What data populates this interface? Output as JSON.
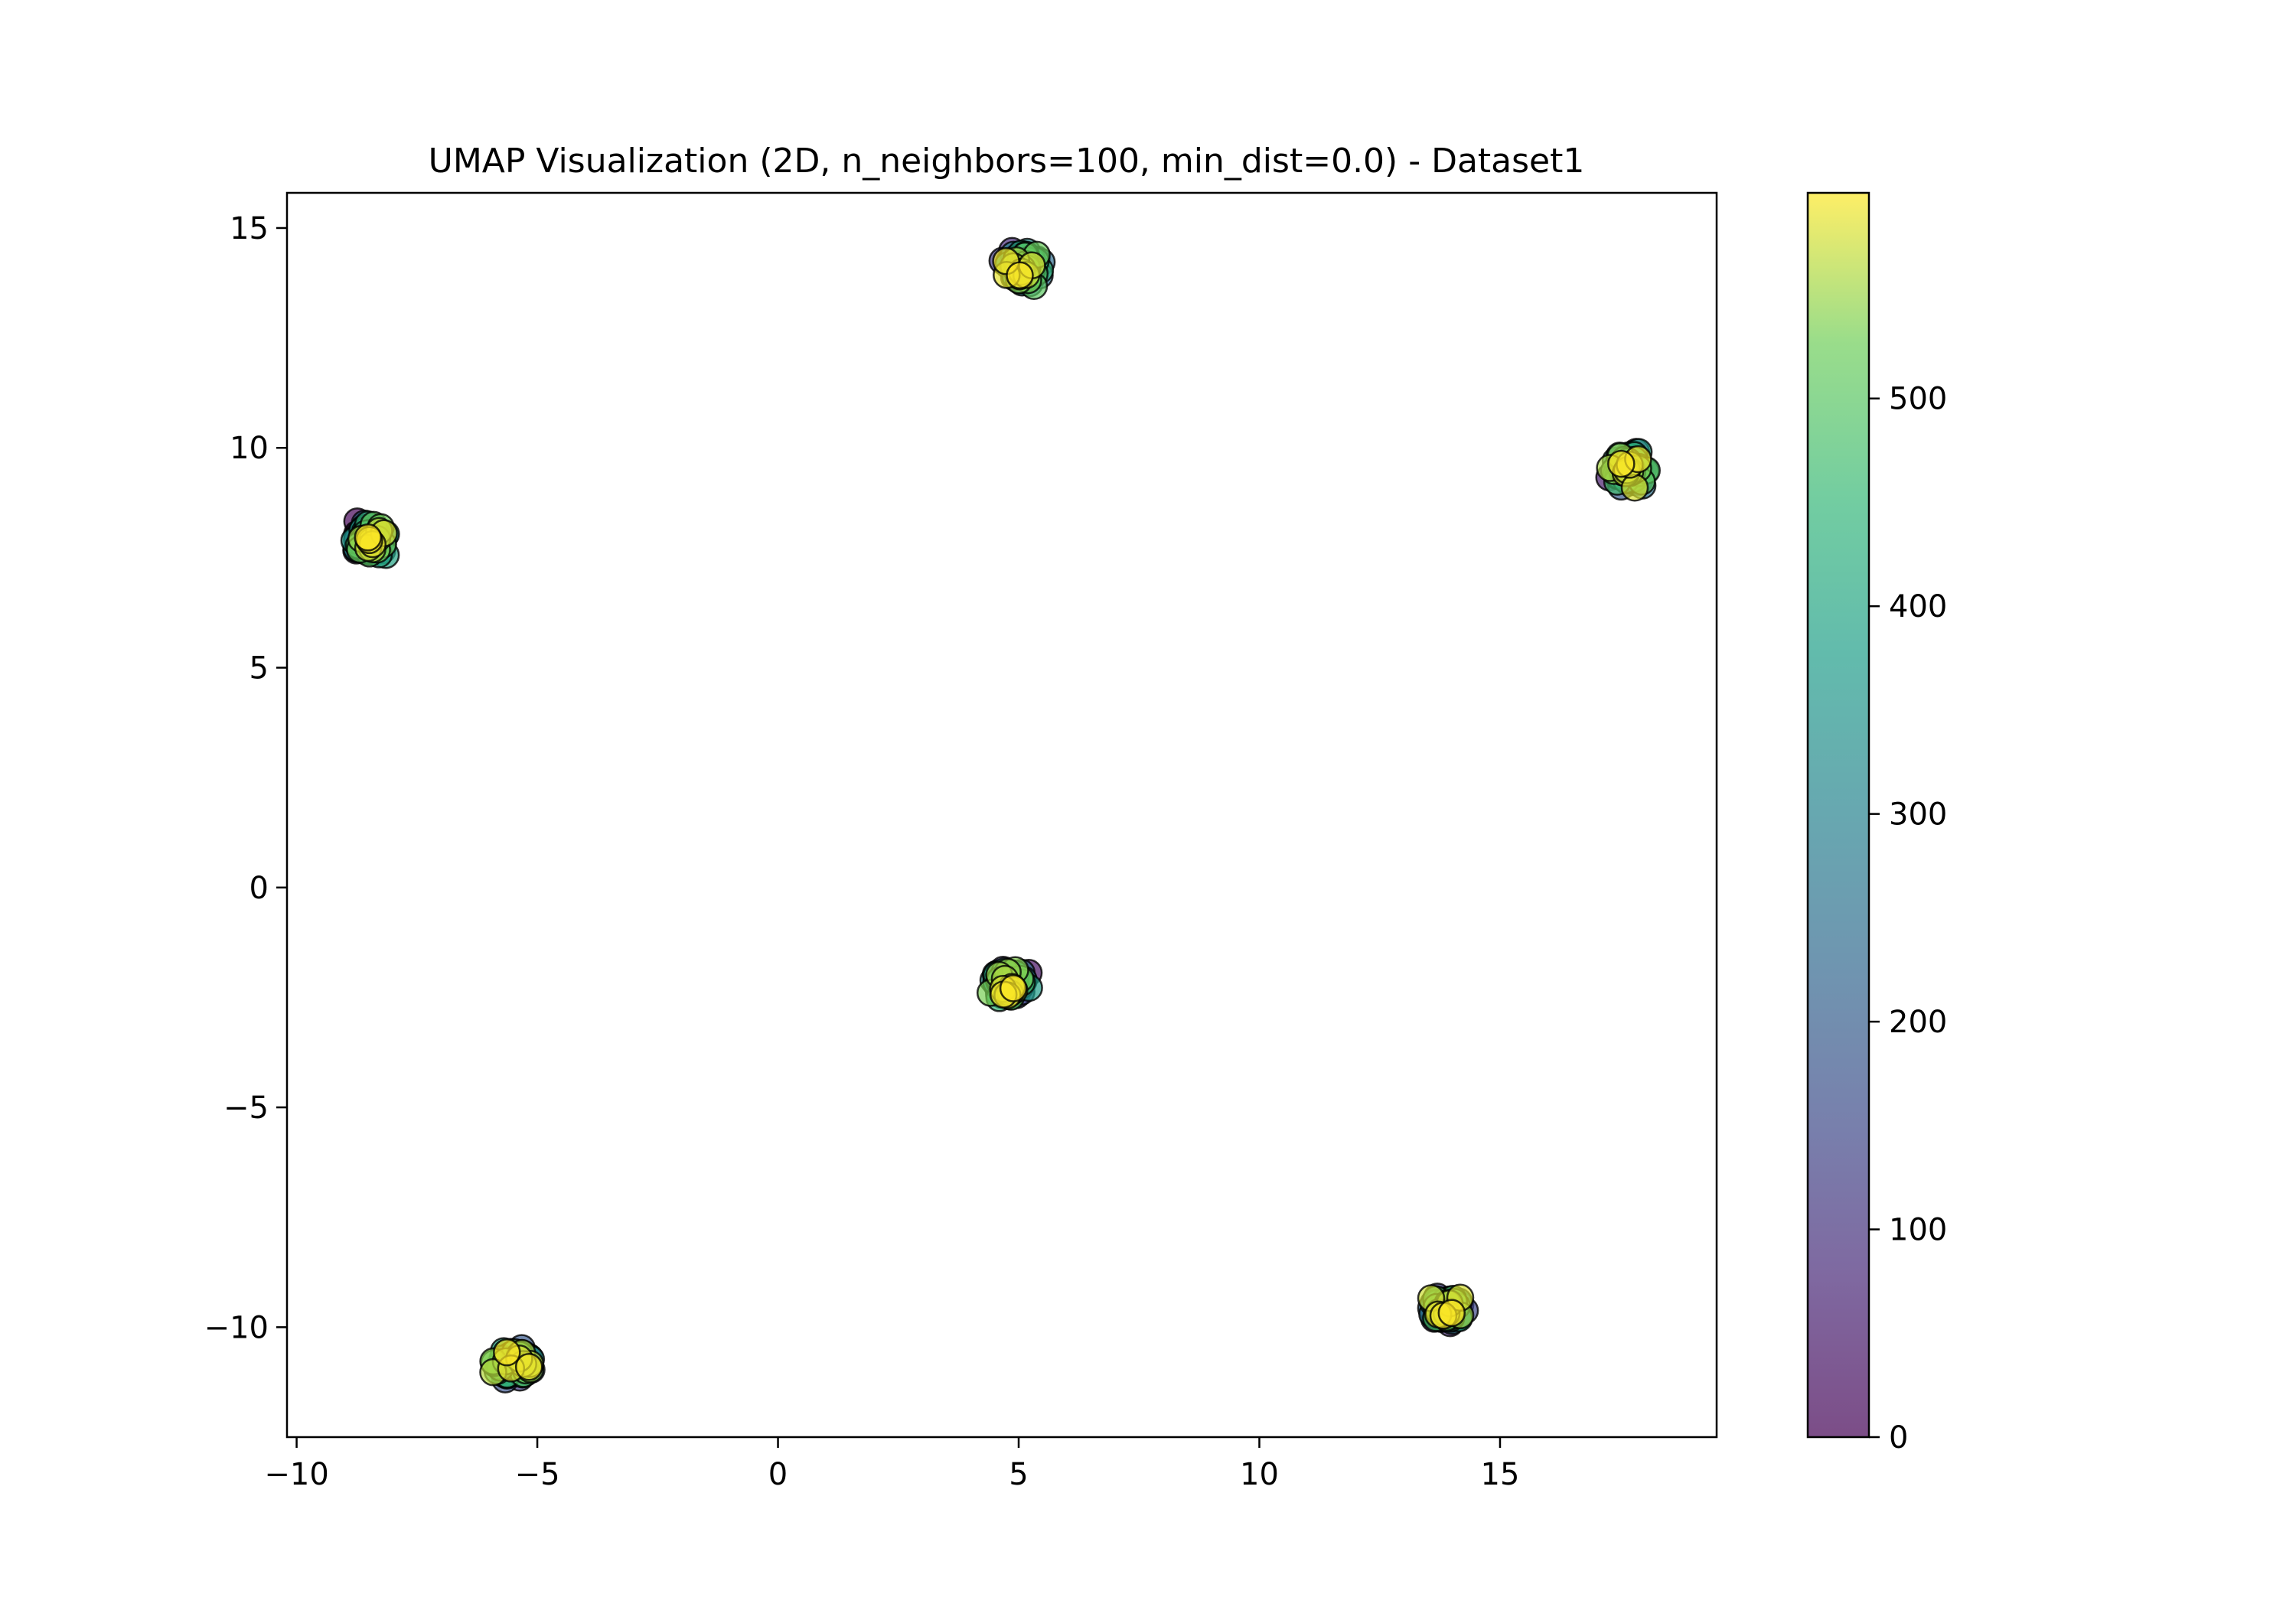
{
  "chart_data": {
    "type": "scatter",
    "title": "UMAP Visualization (2D, n_neighbors=100, min_dist=0.0) - Dataset1",
    "xlabel": "",
    "ylabel": "",
    "xlim": [
      -10.2,
      19.5
    ],
    "ylim": [
      -12.5,
      15.8
    ],
    "x_ticks": [
      -10,
      -5,
      0,
      5,
      10,
      15
    ],
    "x_tick_labels": [
      "−10",
      "−5",
      "0",
      "5",
      "10",
      "15"
    ],
    "y_ticks": [
      -10,
      -5,
      0,
      5,
      10,
      15
    ],
    "y_tick_labels": [
      "−10",
      "−5",
      "0",
      "5",
      "10",
      "15"
    ],
    "grid": false,
    "colormap": "viridis",
    "marker_alpha": 0.7,
    "marker_edge_color": "#000000",
    "clusters": [
      {
        "center_x": 5.1,
        "center_y": 14.1,
        "spread": 0.3,
        "n_points": 100,
        "color_range": [
          0,
          599
        ]
      },
      {
        "center_x": 17.7,
        "center_y": 9.5,
        "spread": 0.3,
        "n_points": 100,
        "color_range": [
          0,
          599
        ]
      },
      {
        "center_x": -8.5,
        "center_y": 7.9,
        "spread": 0.3,
        "n_points": 100,
        "color_range": [
          0,
          599
        ]
      },
      {
        "center_x": 4.8,
        "center_y": -2.2,
        "spread": 0.3,
        "n_points": 100,
        "color_range": [
          0,
          599
        ]
      },
      {
        "center_x": -5.5,
        "center_y": -10.8,
        "spread": 0.3,
        "n_points": 100,
        "color_range": [
          0,
          599
        ]
      },
      {
        "center_x": 13.9,
        "center_y": -9.6,
        "spread": 0.3,
        "n_points": 100,
        "color_range": [
          0,
          599
        ]
      }
    ],
    "colorbar": {
      "min": 0,
      "max": 599,
      "ticks": [
        0,
        100,
        200,
        300,
        400,
        500
      ],
      "tick_labels": [
        "0",
        "100",
        "200",
        "300",
        "400",
        "500"
      ]
    }
  }
}
